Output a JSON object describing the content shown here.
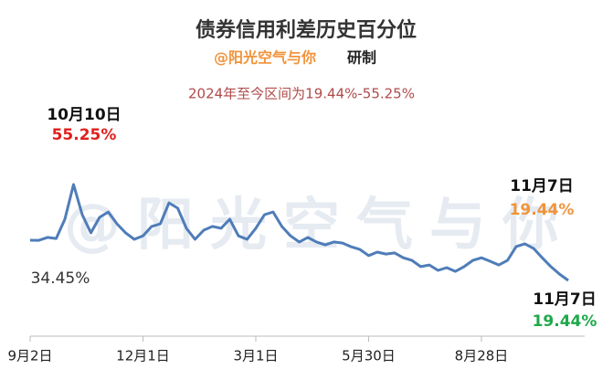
{
  "chart_data": {
    "type": "line",
    "title": "债券信用利差历史百分位",
    "subtitle": {
      "author": "@阳光空气与你",
      "suffix": "研制"
    },
    "note": "2024年至今区间为19.44%-55.25%",
    "watermark": "@阳光空气与你",
    "annotations": [
      {
        "date": "10月10日",
        "value": "55.25%"
      },
      {
        "date": "11月7日",
        "value": "19.44%"
      },
      {
        "value": "34.45%"
      },
      {
        "date": "11月7日",
        "value": "19.44%"
      }
    ],
    "color": "#4f7db8",
    "categories": [
      "9月2日",
      null,
      null,
      null,
      null,
      null,
      null,
      null,
      null,
      null,
      null,
      null,
      null,
      "12月1日",
      null,
      null,
      null,
      null,
      null,
      null,
      null,
      null,
      null,
      null,
      null,
      null,
      "3月1日",
      null,
      null,
      null,
      null,
      null,
      null,
      null,
      null,
      null,
      null,
      null,
      null,
      "5月30日",
      null,
      null,
      null,
      null,
      null,
      null,
      null,
      null,
      null,
      null,
      null,
      null,
      "8月28日",
      null,
      null,
      null,
      null,
      null,
      null,
      null,
      null,
      null,
      null
    ],
    "values": [
      34.45,
      34.4,
      35.5,
      35.1,
      42.3,
      55.25,
      44.0,
      37.2,
      43.0,
      45.0,
      40.6,
      37.2,
      34.8,
      36.1,
      39.6,
      40.6,
      48.4,
      46.4,
      38.9,
      34.8,
      38.2,
      39.6,
      38.9,
      42.3,
      36.1,
      34.8,
      38.9,
      44.0,
      45.0,
      39.6,
      36.1,
      33.8,
      35.5,
      33.8,
      32.7,
      33.8,
      33.4,
      32.0,
      31.0,
      28.7,
      30.0,
      29.3,
      29.7,
      27.9,
      26.9,
      24.6,
      25.2,
      23.2,
      24.2,
      22.8,
      24.6,
      26.9,
      27.9,
      26.6,
      25.2,
      26.9,
      32.1,
      33.1,
      31.4,
      27.9,
      24.6,
      21.8,
      19.44
    ]
  }
}
